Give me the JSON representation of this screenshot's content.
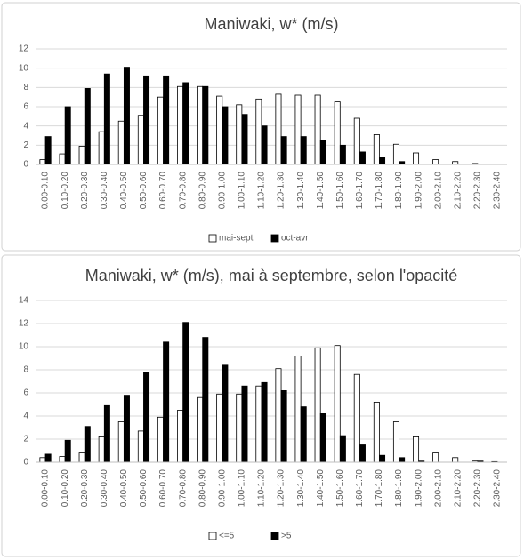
{
  "chart_data": [
    {
      "type": "bar",
      "title": "Maniwaki, w* (m/s)",
      "categories": [
        "0.00-0.10",
        "0.10-0.20",
        "0.20-0.30",
        "0.30-0.40",
        "0.40-0.50",
        "0.50-0.60",
        "0.60-0.70",
        "0.70-0.80",
        "0.80-0.90",
        "0.90-1.00",
        "1.00-1.10",
        "1.10-1.20",
        "1.20-1.30",
        "1.30-1.40",
        "1.40-1.50",
        "1.50-1.60",
        "1.60-1.70",
        "1.70-1.80",
        "1.80-1.90",
        "1.90-2.00",
        "2.00-2.10",
        "2.10-2.20",
        "2.20-2.30",
        "2.30-2.40"
      ],
      "series": [
        {
          "name": "mai-sept",
          "color": "#ffffff",
          "values": [
            0.5,
            1.1,
            1.9,
            3.4,
            4.5,
            5.1,
            7.0,
            8.1,
            8.1,
            7.1,
            6.2,
            6.8,
            7.3,
            7.2,
            7.2,
            6.5,
            4.8,
            3.1,
            2.1,
            1.2,
            0.5,
            0.3,
            0.1,
            0.05
          ]
        },
        {
          "name": "oct-avr",
          "color": "#000000",
          "values": [
            2.9,
            6.0,
            7.9,
            9.4,
            10.1,
            9.2,
            9.2,
            8.5,
            8.1,
            6.0,
            5.2,
            4.0,
            2.9,
            2.9,
            2.5,
            2.0,
            1.3,
            0.7,
            0.3,
            0,
            0,
            0,
            0,
            0
          ]
        }
      ],
      "ylim": [
        0,
        12
      ],
      "yticks": [
        0,
        2,
        4,
        6,
        8,
        10,
        12
      ],
      "grid": true,
      "legend": "bottom"
    },
    {
      "type": "bar",
      "title": "Maniwaki, w* (m/s), mai à septembre, selon l'opacité",
      "categories": [
        "0.00-0.10",
        "0.10-0.20",
        "0.20-0.30",
        "0.30-0.40",
        "0.40-0.50",
        "0.50-0.60",
        "0.60-0.70",
        "0.70-0.80",
        "0.80-0.90",
        "0.90-1.00",
        "1.00-1.10",
        "1.10-1.20",
        "1.20-1.30",
        "1.30-1.40",
        "1.40-1.50",
        "1.50-1.60",
        "1.60-1.70",
        "1.70-1.80",
        "1.80-1.90",
        "1.90-2.00",
        "2.00-2.10",
        "2.10-2.20",
        "2.20-2.30",
        "2.30-2.40"
      ],
      "series": [
        {
          "name": "<=5",
          "color": "#ffffff",
          "values": [
            0.4,
            0.5,
            0.8,
            2.2,
            3.5,
            2.7,
            3.9,
            4.5,
            5.6,
            5.9,
            5.9,
            6.6,
            8.1,
            9.2,
            9.9,
            10.1,
            7.6,
            5.2,
            3.5,
            2.2,
            0.8,
            0.4,
            0.1,
            0.05
          ]
        },
        {
          "name": ">5",
          "color": "#000000",
          "values": [
            0.7,
            1.9,
            3.1,
            4.9,
            5.8,
            7.8,
            10.4,
            12.1,
            10.8,
            8.4,
            6.6,
            6.9,
            6.2,
            4.8,
            4.2,
            2.3,
            1.5,
            0.6,
            0.4,
            0.1,
            0,
            0,
            0.1,
            0
          ]
        }
      ],
      "ylim": [
        0,
        14
      ],
      "yticks": [
        0,
        2,
        4,
        6,
        8,
        10,
        12,
        14
      ],
      "grid": true,
      "legend": "bottom"
    }
  ]
}
